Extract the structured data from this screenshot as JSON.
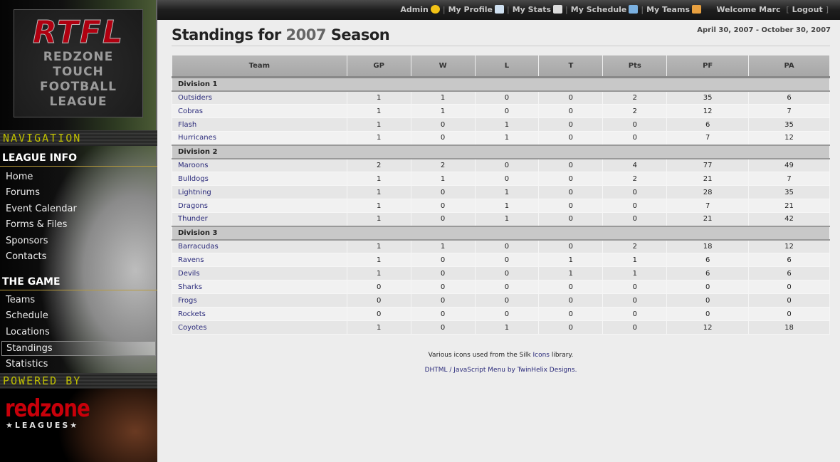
{
  "logo": {
    "acronym": "RTFL",
    "lines": [
      "REDZONE",
      "TOUCH",
      "FOOTBALL",
      "LEAGUE"
    ]
  },
  "sidebar": {
    "nav_label": "NAVIGATION",
    "league_info": {
      "title": "LEAGUE INFO",
      "items": [
        "Home",
        "Forums",
        "Event Calendar",
        "Forms & Files",
        "Sponsors",
        "Contacts"
      ]
    },
    "the_game": {
      "title": "THE GAME",
      "items": [
        "Teams",
        "Schedule",
        "Locations",
        "Standings",
        "Statistics"
      ],
      "active": "Standings"
    },
    "powered_label": "POWERED BY",
    "powered_logo": {
      "name": "redzone",
      "sub": "★LEAGUES★"
    }
  },
  "topbar": {
    "links": [
      {
        "label": "Admin",
        "icon": "star-icon"
      },
      {
        "label": "My Profile",
        "icon": "vcard-icon"
      },
      {
        "label": "My Stats",
        "icon": "calculator-icon"
      },
      {
        "label": "My Schedule",
        "icon": "calendar-icon"
      },
      {
        "label": "My Teams",
        "icon": "group-icon"
      }
    ],
    "welcome": "Welcome Marc",
    "logout": "Logout"
  },
  "page": {
    "title_pre": "Standings for",
    "year": "2007",
    "title_post": "Season",
    "date_range": "April 30, 2007 - October 30, 2007"
  },
  "table": {
    "columns": [
      "Team",
      "GP",
      "W",
      "L",
      "T",
      "Pts",
      "PF",
      "PA"
    ],
    "divisions": [
      {
        "name": "Division 1",
        "teams": [
          [
            "Outsiders",
            1,
            1,
            0,
            0,
            2,
            35,
            6
          ],
          [
            "Cobras",
            1,
            1,
            0,
            0,
            2,
            12,
            7
          ],
          [
            "Flash",
            1,
            0,
            1,
            0,
            0,
            6,
            35
          ],
          [
            "Hurricanes",
            1,
            0,
            1,
            0,
            0,
            7,
            12
          ]
        ]
      },
      {
        "name": "Division 2",
        "teams": [
          [
            "Maroons",
            2,
            2,
            0,
            0,
            4,
            77,
            49
          ],
          [
            "Bulldogs",
            1,
            1,
            0,
            0,
            2,
            21,
            7
          ],
          [
            "Lightning",
            1,
            0,
            1,
            0,
            0,
            28,
            35
          ],
          [
            "Dragons",
            1,
            0,
            1,
            0,
            0,
            7,
            21
          ],
          [
            "Thunder",
            1,
            0,
            1,
            0,
            0,
            21,
            42
          ]
        ]
      },
      {
        "name": "Division 3",
        "teams": [
          [
            "Barracudas",
            1,
            1,
            0,
            0,
            2,
            18,
            12
          ],
          [
            "Ravens",
            1,
            0,
            0,
            1,
            1,
            6,
            6
          ],
          [
            "Devils",
            1,
            0,
            0,
            1,
            1,
            6,
            6
          ],
          [
            "Sharks",
            0,
            0,
            0,
            0,
            0,
            0,
            0
          ],
          [
            "Frogs",
            0,
            0,
            0,
            0,
            0,
            0,
            0
          ],
          [
            "Rockets",
            0,
            0,
            0,
            0,
            0,
            0,
            0
          ],
          [
            "Coyotes",
            1,
            0,
            1,
            0,
            0,
            12,
            18
          ]
        ]
      }
    ]
  },
  "footer": {
    "line1_pre": "Various icons used from the Silk ",
    "line1_link": "Icons",
    "line1_post": " library.",
    "line2": "DHTML / JavaScript Menu by TwinHelix Designs."
  }
}
